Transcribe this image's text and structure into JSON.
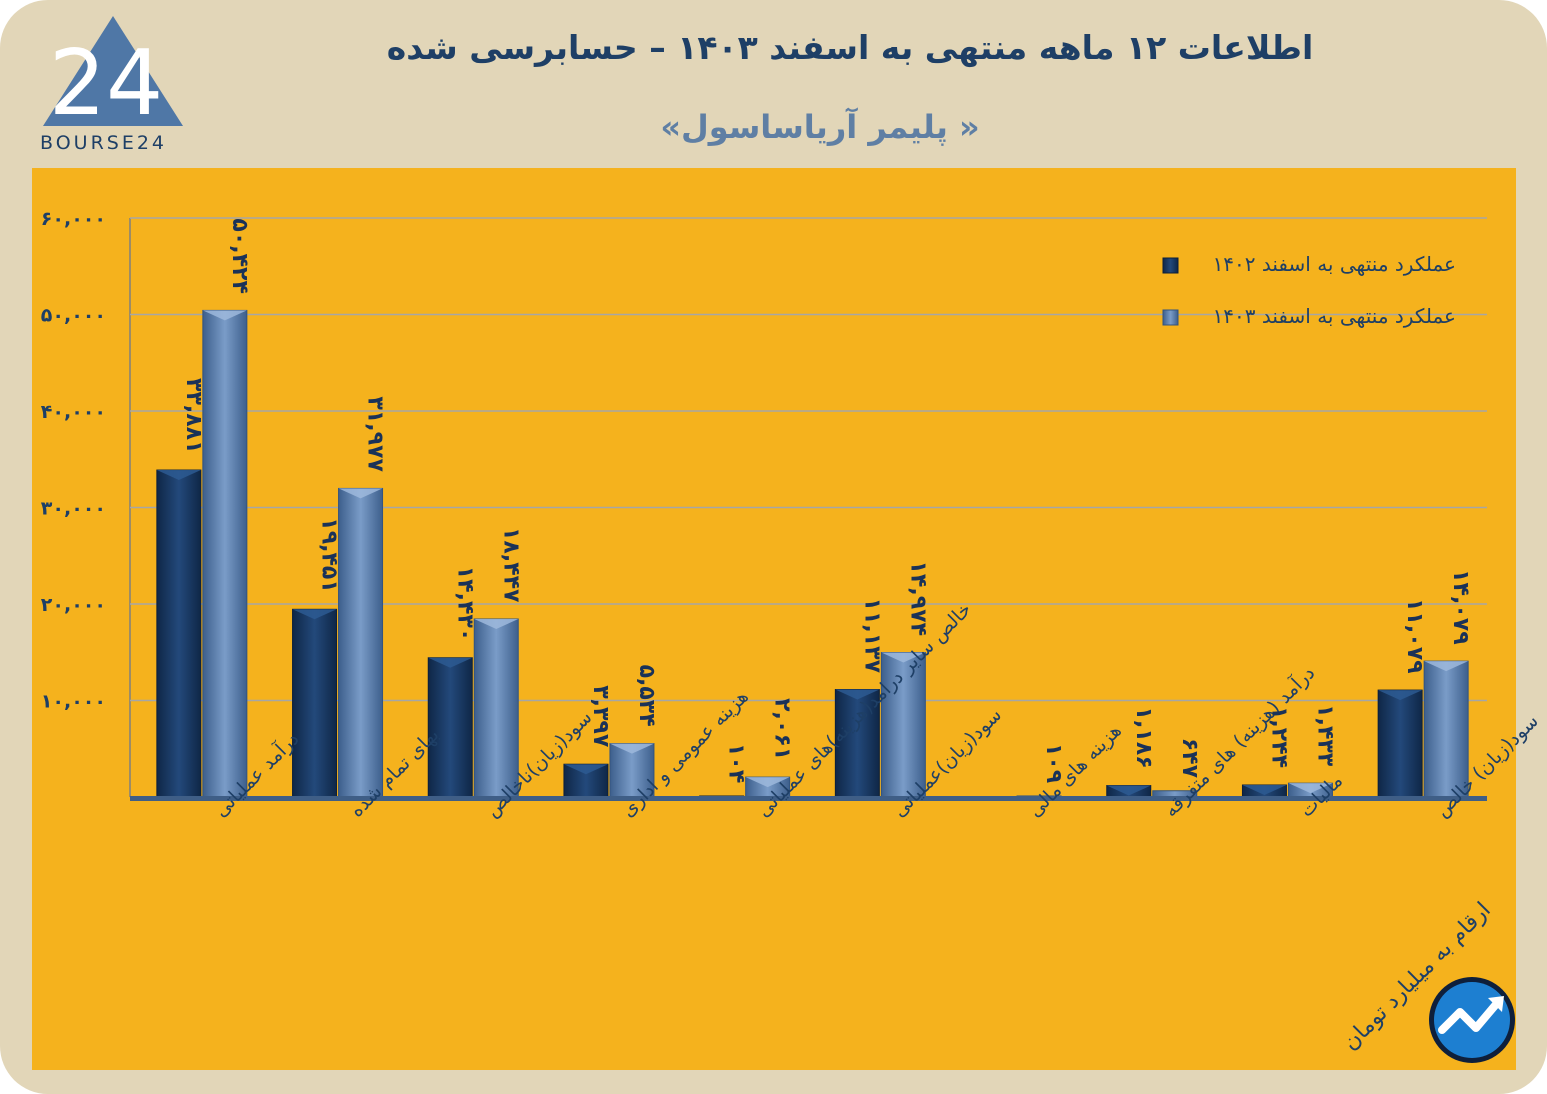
{
  "header": {
    "title": "اطلاعات ۱۲ ماهه منتهی به اسفند ۱۴۰۳ – حسابرسی شده",
    "company": "« پلیمر آریاساسول»",
    "logo_text": "BOURSE24",
    "logo_mark": "24"
  },
  "footnote": "ارقام به میلیارد تومان",
  "colors": {
    "page_bg": "#e2d6b8",
    "panel_bg": "#f5b21d",
    "series_1402": "#1b3d6b",
    "series_1403": "#5b7fae",
    "title": "#1e3f66",
    "company": "#5f7fa4",
    "gridline": "#a6a6a6"
  },
  "chart_data": {
    "type": "bar",
    "categories": [
      "درآمد عملیاتی",
      "بهای تمام شده",
      "سود(زیان)ناخالص",
      "هزینه عمومی و اداری",
      "خالص سایر درامد(هزینه)های عملیاتی",
      "سود(زیان)عملیاتی",
      "هزینه های مالی",
      "درآمد (هزینه) های متفرقه",
      "مالیات",
      "سود(زیان) خالص"
    ],
    "series": [
      {
        "name": "عملکرد منتهی به اسفند ۱۴۰۲",
        "values": [
          33881,
          19451,
          14430,
          3397,
          104,
          11137,
          null,
          1186,
          1244,
          11079
        ],
        "labels": [
          "۳۳,۸۸۱",
          "۱۹,۴۵۱",
          "۱۴,۴۳۰",
          "۳,۳۹۷",
          "۱۰۴",
          "۱۱,۱۳۷",
          "",
          "۱,۱۸۶",
          "۱,۲۴۴",
          "۱۱,۰۷۹"
        ]
      },
      {
        "name": "عملکرد منتهی به اسفند ۱۴۰۳",
        "values": [
          50424,
          31977,
          18447,
          5534,
          2061,
          14974,
          109,
          647,
          1433,
          14079
        ],
        "labels": [
          "۵۰,۴۲۴",
          "۳۱,۹۷۷",
          "۱۸,۴۴۷",
          "۵,۵۳۴",
          "۲,۰۶۱",
          "۱۴,۹۷۴",
          "۱۰۹",
          "۶۴۷",
          "۱,۴۳۳",
          "۱۴,۰۷۹"
        ]
      }
    ],
    "y_ticks": [
      10000,
      20000,
      30000,
      40000,
      50000,
      60000
    ],
    "y_tick_labels": [
      "۱۰,۰۰۰",
      "۲۰,۰۰۰",
      "۳۰,۰۰۰",
      "۴۰,۰۰۰",
      "۵۰,۰۰۰",
      "۶۰,۰۰۰"
    ],
    "ylim": [
      0,
      60000
    ],
    "grid": true,
    "legend_position": "top-right",
    "title": "",
    "xlabel": "",
    "ylabel": ""
  }
}
